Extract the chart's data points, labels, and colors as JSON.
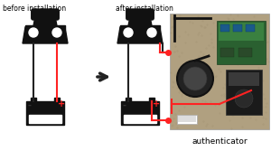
{
  "title_left": "before installation",
  "title_right": "after installation",
  "label_authenticator": "authenticator",
  "bg": "#ffffff",
  "car_color": "#111111",
  "wire_black": "#222222",
  "wire_red": "#ff2222",
  "minus_color": "#333333",
  "plus_color": "#ff2222",
  "arrow_color": "#222222",
  "figsize": [
    3.0,
    1.67
  ],
  "dpi": 100,
  "carpet_color": "#b0a080",
  "pcb_color": "#2a6030",
  "pcb_light": "#3a8040"
}
